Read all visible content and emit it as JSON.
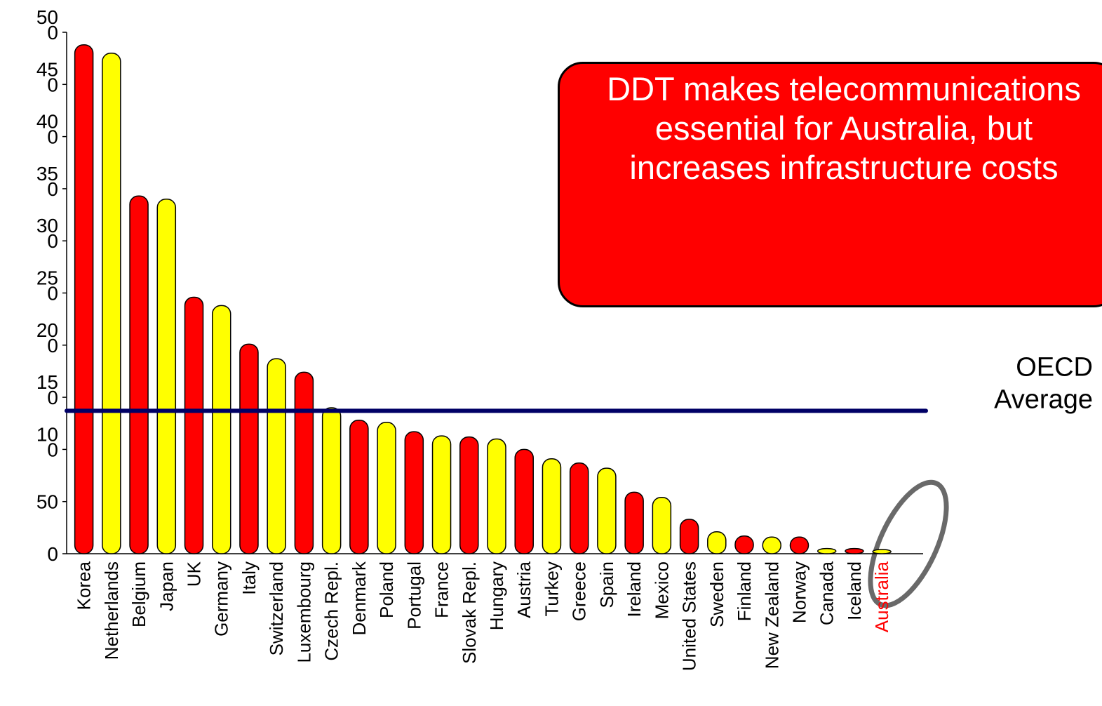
{
  "chart_data": {
    "type": "bar",
    "categories": [
      "Korea",
      "Netherlands",
      "Belgium",
      "Japan",
      "UK",
      "Germany",
      "Italy",
      "Switzerland",
      "Luxembourg",
      "Czech Repl.",
      "Denmark",
      "Poland",
      "Portugal",
      "France",
      "Slovak Repl.",
      "Hungary",
      "Austria",
      "Turkey",
      "Greece",
      "Spain",
      "Ireland",
      "Mexico",
      "United States",
      "Sweden",
      "Finland",
      "New Zealand",
      "Norway",
      "Canada",
      "Iceland",
      "Australia"
    ],
    "values": [
      488,
      480,
      343,
      340,
      246,
      238,
      201,
      187,
      174,
      140,
      128,
      126,
      117,
      113,
      112,
      110,
      100,
      91,
      87,
      82,
      59,
      54,
      33,
      21,
      17,
      16,
      16,
      5,
      5,
      4
    ],
    "colors": [
      "#ff0000",
      "#ffff00",
      "#ff0000",
      "#ffff00",
      "#ff0000",
      "#ffff00",
      "#ff0000",
      "#ffff00",
      "#ff0000",
      "#ffff00",
      "#ff0000",
      "#ffff00",
      "#ff0000",
      "#ffff00",
      "#ff0000",
      "#ffff00",
      "#ff0000",
      "#ffff00",
      "#ff0000",
      "#ffff00",
      "#ff0000",
      "#ffff00",
      "#ff0000",
      "#ffff00",
      "#ff0000",
      "#ffff00",
      "#ff0000",
      "#ffff00",
      "#ff0000",
      "#ffff00"
    ],
    "highlight": "Australia",
    "highlight_color": "#ff0000",
    "ylim": [
      0,
      500
    ],
    "yticks": [
      0,
      50,
      100,
      150,
      200,
      250,
      300,
      350,
      400,
      450,
      500
    ],
    "average": {
      "value": 137,
      "label": "OECD Average",
      "color": "#000066"
    },
    "annotation": "DDT makes telecommunications essential for Australia, but increases infrastructure costs"
  }
}
